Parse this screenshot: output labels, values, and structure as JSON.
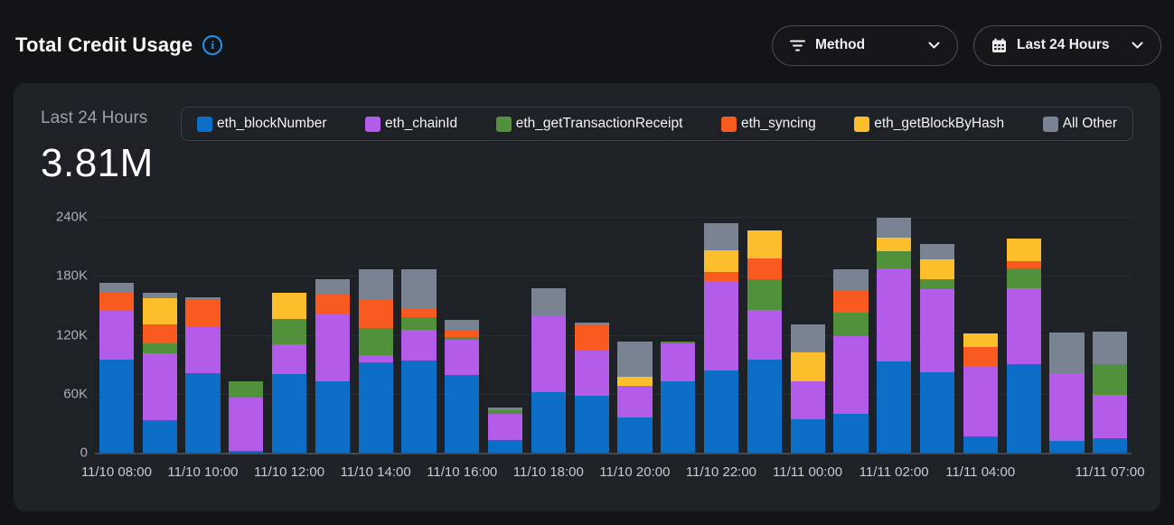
{
  "header": {
    "title": "Total Credit Usage"
  },
  "filters": {
    "method": {
      "label": "Method"
    },
    "time_range": {
      "label": "Last 24 Hours"
    }
  },
  "card": {
    "subtitle": "Last 24 Hours",
    "total": "3.81M"
  },
  "colors": {
    "page_bg": "#121417",
    "card_bg": "#1e2126",
    "accent_info": "#2196f3"
  },
  "chart_data": {
    "type": "bar",
    "stacked": true,
    "title": "Total Credit Usage - Last 24 Hours",
    "units": "K credits",
    "ymax": 240,
    "grid": true,
    "legend_position": "top",
    "x": [
      "11/10 08:00",
      "11/10 09:00",
      "11/10 10:00",
      "11/10 11:00",
      "11/10 12:00",
      "11/10 13:00",
      "11/10 14:00",
      "11/10 15:00",
      "11/10 16:00",
      "11/10 17:00",
      "11/10 18:00",
      "11/10 19:00",
      "11/10 20:00",
      "11/10 21:00",
      "11/10 22:00",
      "11/10 23:00",
      "11/11 00:00",
      "11/11 01:00",
      "11/11 02:00",
      "11/11 03:00",
      "11/11 04:00",
      "11/11 05:00",
      "11/11 06:00",
      "11/11 07:00"
    ],
    "series": [
      {
        "name": "eth_blockNumber",
        "color": "#0d6ec7",
        "values": [
          95,
          33,
          81,
          2,
          80,
          73,
          92,
          94,
          79,
          13,
          62,
          58,
          36,
          73,
          84,
          95,
          34,
          40,
          93,
          82,
          17,
          90,
          12,
          15
        ]
      },
      {
        "name": "eth_chainId",
        "color": "#b35ce9",
        "values": [
          49,
          68,
          48,
          54,
          30,
          68,
          7,
          31,
          36,
          27,
          78,
          47,
          32,
          38,
          91,
          50,
          39,
          79,
          95,
          84,
          71,
          77,
          69,
          44
        ]
      },
      {
        "name": "eth_getTransactionReceipt",
        "color": "#52913c",
        "values": [
          0,
          10,
          0,
          17,
          26,
          0,
          28,
          13,
          3,
          3,
          0,
          0,
          0,
          2,
          0,
          32,
          0,
          24,
          17,
          11,
          0,
          21,
          0,
          31
        ]
      },
      {
        "name": "eth_syncing",
        "color": "#f95a1f",
        "values": [
          20,
          20,
          26,
          0,
          0,
          20,
          28,
          8,
          6,
          0,
          0,
          26,
          0,
          0,
          9,
          21,
          0,
          22,
          0,
          0,
          20,
          7,
          0,
          0
        ]
      },
      {
        "name": "eth_getBlockByHash",
        "color": "#fcbf2b",
        "values": [
          0,
          26,
          0,
          0,
          27,
          0,
          0,
          0,
          0,
          0,
          0,
          0,
          9,
          0,
          22,
          28,
          29,
          0,
          14,
          20,
          13,
          23,
          0,
          0
        ]
      },
      {
        "name": "All Other",
        "color": "#7a8391",
        "values": [
          9,
          6,
          3,
          0,
          0,
          16,
          32,
          41,
          11,
          3,
          27,
          1,
          36,
          0,
          28,
          0,
          29,
          22,
          20,
          15,
          0,
          0,
          41,
          33
        ]
      }
    ],
    "yticks": [
      {
        "value": 0,
        "label": "0"
      },
      {
        "value": 60,
        "label": "60K"
      },
      {
        "value": 120,
        "label": "120K"
      },
      {
        "value": 180,
        "label": "180K"
      },
      {
        "value": 240,
        "label": "240K"
      }
    ],
    "x_tick_labels": [
      {
        "index": 0,
        "label": "11/10 08:00"
      },
      {
        "index": 2,
        "label": "11/10 10:00"
      },
      {
        "index": 4,
        "label": "11/10 12:00"
      },
      {
        "index": 6,
        "label": "11/10 14:00"
      },
      {
        "index": 8,
        "label": "11/10 16:00"
      },
      {
        "index": 10,
        "label": "11/10 18:00"
      },
      {
        "index": 12,
        "label": "11/10 20:00"
      },
      {
        "index": 14,
        "label": "11/10 22:00"
      },
      {
        "index": 16,
        "label": "11/11 00:00"
      },
      {
        "index": 18,
        "label": "11/11 02:00"
      },
      {
        "index": 20,
        "label": "11/11 04:00"
      },
      {
        "index": 23,
        "label": "11/11 07:00"
      }
    ]
  }
}
